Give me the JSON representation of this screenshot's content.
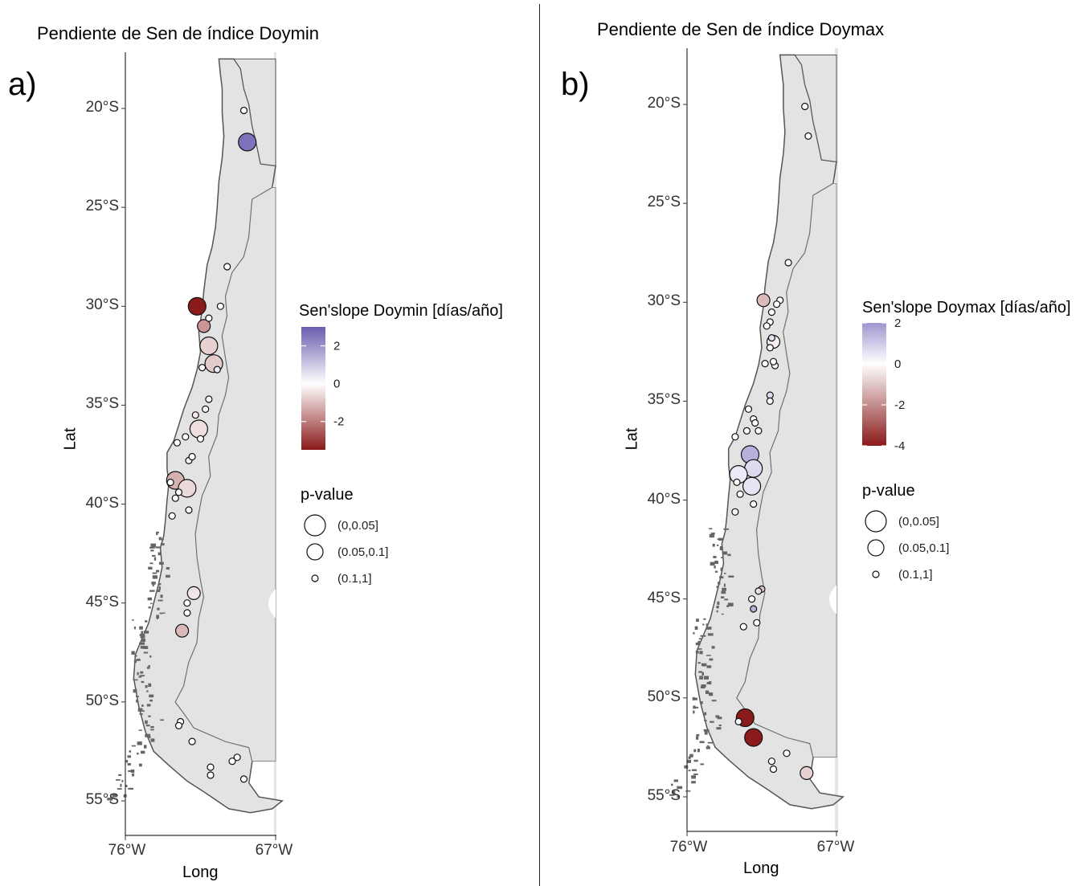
{
  "panels": [
    {
      "id": "a",
      "letter": "a)",
      "title": "Pendiente de Sen de índice Doymin",
      "xlabel": "Long",
      "ylabel": "Lat",
      "ylabels": [
        "20°S",
        "25°S",
        "30°S",
        "35°S",
        "40°S",
        "45°S",
        "50°S",
        "55°S"
      ],
      "xlabels": [
        "76°W",
        "67°W"
      ],
      "colorbar": {
        "title": "Sen'slope Doymin [días/año]",
        "ticks": [
          "2",
          "0",
          "-2"
        ],
        "range": [
          -3.5,
          3
        ],
        "colors": [
          "#6a5cb0",
          "#ffffff",
          "#8b1a1a"
        ]
      },
      "size_legend": {
        "title": "p-value",
        "items": [
          "(0,0.05]",
          "(0.05,0.1]",
          "(0.1,1]"
        ]
      },
      "stations": [
        {
          "lon": -68.9,
          "lat": -20.1,
          "slope": 0,
          "p": 3
        },
        {
          "lon": -68.7,
          "lat": -21.7,
          "slope": 2.6,
          "p": 1
        },
        {
          "lon": -69.9,
          "lat": -28.0,
          "slope": 0,
          "p": 3
        },
        {
          "lon": -71.7,
          "lat": -30.0,
          "slope": -3.5,
          "p": 1
        },
        {
          "lon": -70.3,
          "lat": -30.0,
          "slope": 0,
          "p": 3
        },
        {
          "lon": -71.0,
          "lat": -30.6,
          "slope": 0,
          "p": 3
        },
        {
          "lon": -71.3,
          "lat": -31.0,
          "slope": -1.6,
          "p": 2
        },
        {
          "lon": -71.0,
          "lat": -32.0,
          "slope": -0.7,
          "p": 1
        },
        {
          "lon": -70.7,
          "lat": -32.9,
          "slope": -0.8,
          "p": 1
        },
        {
          "lon": -70.5,
          "lat": -33.2,
          "slope": 0.4,
          "p": 3
        },
        {
          "lon": -71.4,
          "lat": -33.1,
          "slope": 0,
          "p": 3
        },
        {
          "lon": -71.0,
          "lat": -34.7,
          "slope": 0,
          "p": 3
        },
        {
          "lon": -71.2,
          "lat": -35.2,
          "slope": 0,
          "p": 3
        },
        {
          "lon": -71.8,
          "lat": -35.5,
          "slope": -0.3,
          "p": 3
        },
        {
          "lon": -71.6,
          "lat": -36.2,
          "slope": -0.5,
          "p": 1
        },
        {
          "lon": -72.4,
          "lat": -36.6,
          "slope": 0,
          "p": 3
        },
        {
          "lon": -72.9,
          "lat": -36.9,
          "slope": 0,
          "p": 3
        },
        {
          "lon": -71.5,
          "lat": -36.7,
          "slope": 0,
          "p": 3
        },
        {
          "lon": -72.2,
          "lat": -37.8,
          "slope": -0.2,
          "p": 3
        },
        {
          "lon": -72.0,
          "lat": -37.6,
          "slope": 0,
          "p": 3
        },
        {
          "lon": -73.0,
          "lat": -38.8,
          "slope": -1.2,
          "p": 1
        },
        {
          "lon": -72.3,
          "lat": -39.2,
          "slope": -0.6,
          "p": 1
        },
        {
          "lon": -73.3,
          "lat": -38.9,
          "slope": 0,
          "p": 3
        },
        {
          "lon": -72.8,
          "lat": -39.4,
          "slope": 0,
          "p": 3
        },
        {
          "lon": -73.0,
          "lat": -39.7,
          "slope": 0,
          "p": 3
        },
        {
          "lon": -72.2,
          "lat": -40.3,
          "slope": 0,
          "p": 3
        },
        {
          "lon": -73.2,
          "lat": -40.6,
          "slope": 0,
          "p": 3
        },
        {
          "lon": -71.9,
          "lat": -44.5,
          "slope": -0.4,
          "p": 2
        },
        {
          "lon": -72.3,
          "lat": -45.0,
          "slope": 0,
          "p": 3
        },
        {
          "lon": -72.3,
          "lat": -45.5,
          "slope": 0,
          "p": 3
        },
        {
          "lon": -72.6,
          "lat": -46.4,
          "slope": -1.1,
          "p": 2
        },
        {
          "lon": -72.7,
          "lat": -51.0,
          "slope": 0,
          "p": 3
        },
        {
          "lon": -72.8,
          "lat": -51.2,
          "slope": 0,
          "p": 3
        },
        {
          "lon": -72.0,
          "lat": -52.0,
          "slope": 0,
          "p": 3
        },
        {
          "lon": -70.9,
          "lat": -53.3,
          "slope": 0,
          "p": 3
        },
        {
          "lon": -70.9,
          "lat": -53.7,
          "slope": 0,
          "p": 3
        },
        {
          "lon": -69.3,
          "lat": -52.8,
          "slope": 0,
          "p": 3
        },
        {
          "lon": -69.6,
          "lat": -53.0,
          "slope": 0,
          "p": 3
        },
        {
          "lon": -68.9,
          "lat": -53.9,
          "slope": 0,
          "p": 3
        }
      ]
    },
    {
      "id": "b",
      "letter": "b)",
      "title": "Pendiente de Sen de índice Doymax",
      "xlabel": "Long",
      "ylabel": "Lat",
      "ylabels": [
        "20°S",
        "25°S",
        "30°S",
        "35°S",
        "40°S",
        "45°S",
        "50°S",
        "55°S"
      ],
      "xlabels": [
        "76°W",
        "67°W"
      ],
      "colorbar": {
        "title": "Sen'slope Doymax [días/año]",
        "ticks": [
          "2",
          "0",
          "-2",
          "-4"
        ],
        "range": [
          -4,
          2
        ],
        "colors": [
          "#9f96d0",
          "#ffffff",
          "#8b1a1a"
        ]
      },
      "size_legend": {
        "title": "p-value",
        "items": [
          "(0,0.05]",
          "(0.05,0.1]",
          "(0.1,1]"
        ]
      },
      "stations": [
        {
          "lon": -68.9,
          "lat": -20.1,
          "slope": 0,
          "p": 3
        },
        {
          "lon": -68.7,
          "lat": -21.6,
          "slope": 0,
          "p": 3
        },
        {
          "lon": -69.9,
          "lat": -28.0,
          "slope": 0,
          "p": 3
        },
        {
          "lon": -71.4,
          "lat": -29.9,
          "slope": -1.2,
          "p": 2
        },
        {
          "lon": -70.4,
          "lat": -29.9,
          "slope": 0,
          "p": 3
        },
        {
          "lon": -70.6,
          "lat": -30.1,
          "slope": 0,
          "p": 3
        },
        {
          "lon": -70.9,
          "lat": -30.5,
          "slope": 0,
          "p": 3
        },
        {
          "lon": -71.0,
          "lat": -31.0,
          "slope": 0,
          "p": 3
        },
        {
          "lon": -71.2,
          "lat": -31.2,
          "slope": 0,
          "p": 3
        },
        {
          "lon": -70.9,
          "lat": -31.8,
          "slope": 0.6,
          "p": 3
        },
        {
          "lon": -70.8,
          "lat": -32.0,
          "slope": -0.3,
          "p": 2
        },
        {
          "lon": -71.0,
          "lat": -32.3,
          "slope": 0,
          "p": 3
        },
        {
          "lon": -70.7,
          "lat": -33.2,
          "slope": 0,
          "p": 3
        },
        {
          "lon": -71.3,
          "lat": -33.1,
          "slope": 0,
          "p": 3
        },
        {
          "lon": -70.8,
          "lat": -33.0,
          "slope": 0,
          "p": 3
        },
        {
          "lon": -71.0,
          "lat": -34.7,
          "slope": 0.7,
          "p": 3
        },
        {
          "lon": -71.0,
          "lat": -35.0,
          "slope": 0,
          "p": 3
        },
        {
          "lon": -72.3,
          "lat": -35.4,
          "slope": 0,
          "p": 3
        },
        {
          "lon": -72.0,
          "lat": -35.9,
          "slope": 0,
          "p": 3
        },
        {
          "lon": -71.9,
          "lat": -36.1,
          "slope": 0,
          "p": 3
        },
        {
          "lon": -71.7,
          "lat": -36.5,
          "slope": 0,
          "p": 3
        },
        {
          "lon": -72.4,
          "lat": -36.5,
          "slope": 0,
          "p": 3
        },
        {
          "lon": -73.1,
          "lat": -36.8,
          "slope": 0,
          "p": 3
        },
        {
          "lon": -72.2,
          "lat": -37.7,
          "slope": 1.5,
          "p": 1
        },
        {
          "lon": -72.0,
          "lat": -38.4,
          "slope": 0.7,
          "p": 1
        },
        {
          "lon": -72.9,
          "lat": -38.7,
          "slope": 0.4,
          "p": 1
        },
        {
          "lon": -72.1,
          "lat": -39.3,
          "slope": 0.5,
          "p": 1
        },
        {
          "lon": -73.0,
          "lat": -39.1,
          "slope": 0,
          "p": 3
        },
        {
          "lon": -72.8,
          "lat": -39.7,
          "slope": 0,
          "p": 3
        },
        {
          "lon": -72.0,
          "lat": -40.2,
          "slope": 0,
          "p": 3
        },
        {
          "lon": -73.1,
          "lat": -40.6,
          "slope": 0,
          "p": 3
        },
        {
          "lon": -71.5,
          "lat": -44.5,
          "slope": -1.0,
          "p": 3
        },
        {
          "lon": -71.7,
          "lat": -44.6,
          "slope": -0.6,
          "p": 3
        },
        {
          "lon": -72.1,
          "lat": -45.0,
          "slope": 0,
          "p": 3
        },
        {
          "lon": -72.0,
          "lat": -45.5,
          "slope": 1.5,
          "p": 3
        },
        {
          "lon": -71.8,
          "lat": -46.2,
          "slope": 0,
          "p": 3
        },
        {
          "lon": -72.6,
          "lat": -46.4,
          "slope": 0,
          "p": 3
        },
        {
          "lon": -72.5,
          "lat": -51.0,
          "slope": -4.0,
          "p": 1
        },
        {
          "lon": -72.9,
          "lat": -51.2,
          "slope": 0,
          "p": 3
        },
        {
          "lon": -72.0,
          "lat": -52.0,
          "slope": -4.0,
          "p": 1
        },
        {
          "lon": -70.9,
          "lat": -53.2,
          "slope": 0,
          "p": 3
        },
        {
          "lon": -70.8,
          "lat": -53.6,
          "slope": 0,
          "p": 3
        },
        {
          "lon": -70.0,
          "lat": -52.8,
          "slope": 0,
          "p": 3
        },
        {
          "lon": -68.8,
          "lat": -53.8,
          "slope": -0.8,
          "p": 2
        }
      ]
    }
  ]
}
